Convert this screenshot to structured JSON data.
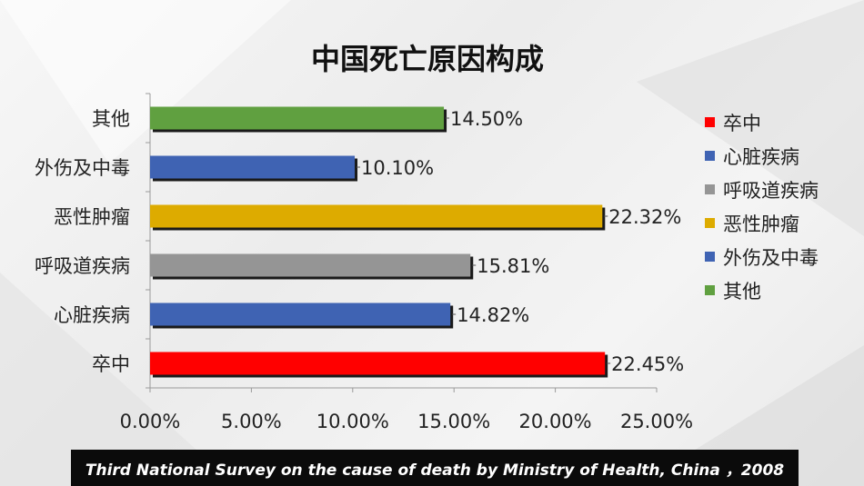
{
  "chart_data": {
    "type": "bar",
    "orientation": "horizontal",
    "title": "中国死亡原因构成",
    "categories": [
      "卒中",
      "心脏疾病",
      "呼吸道疾病",
      "恶性肿瘤",
      "外伤及中毒",
      "其他"
    ],
    "values": [
      22.45,
      14.82,
      15.81,
      22.32,
      10.1,
      14.5
    ],
    "value_labels": [
      "22.45%",
      "14.82%",
      "15.81%",
      "22.32%",
      "10.10%",
      "14.50%"
    ],
    "colors": [
      "#ff0000",
      "#3f63b3",
      "#959595",
      "#ddab00",
      "#3f63b3",
      "#60a040"
    ],
    "xlim": [
      0,
      25
    ],
    "x_ticks": [
      "0.00%",
      "5.00%",
      "10.00%",
      "15.00%",
      "20.00%",
      "25.00%"
    ],
    "xlabel": "",
    "ylabel": "",
    "grid": false,
    "legend_position": "right",
    "legend": [
      {
        "label": "卒中",
        "color": "#ff0000"
      },
      {
        "label": "心脏疾病",
        "color": "#3f63b3"
      },
      {
        "label": "呼吸道疾病",
        "color": "#959595"
      },
      {
        "label": "恶性肿瘤",
        "color": "#ddab00"
      },
      {
        "label": "外伤及中毒",
        "color": "#3f63b3"
      },
      {
        "label": "其他",
        "color": "#60a040"
      }
    ]
  },
  "source": "Third National Survey on the cause of death by Ministry of Health, China ，2008"
}
